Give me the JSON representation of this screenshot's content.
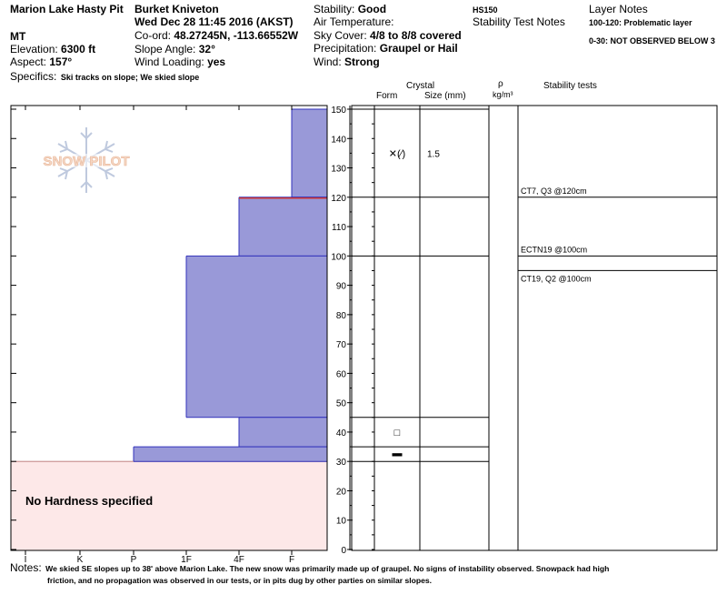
{
  "header": {
    "site": "Marion Lake Hasty Pit",
    "state": "MT",
    "elevation_label": "Elevation:",
    "elevation_value": "6300 ft",
    "aspect_label": "Aspect:",
    "aspect_value": "157°",
    "specifics_label": "Specifics:",
    "specifics_value": "Ski tracks on slope; We skied slope",
    "observer": "Burket Kniveton",
    "datetime": "Wed Dec 28 11:45 2016 (AKST)",
    "coord_label": "Co-ord:",
    "coord_value": "48.27245N, -113.66552W",
    "slope_label": "Slope Angle:",
    "slope_value": "32°",
    "wind_loading_label": "Wind Loading:",
    "wind_loading_value": "yes",
    "stability_label": "Stability:",
    "stability_value": "Good",
    "air_temp_label": "Air Temperature:",
    "sky_label": "Sky Cover:",
    "sky_value": "4/8 to 8/8 covered",
    "precip_label": "Precipitation:",
    "precip_value": "Graupel or Hail",
    "wind_label": "Wind:",
    "wind_value": "Strong",
    "hs": "HS150",
    "stability_notes": "Stability Test Notes",
    "layer_notes": "Layer Notes",
    "layer_note_1": "100-120: Problematic layer",
    "layer_note_2": "0-30: NOT OBSERVED BELOW 3"
  },
  "columns": {
    "crystal": "Crystal",
    "form": "Form",
    "size": "Size (mm)",
    "rho": "ρ",
    "rho_unit": "kg/m³",
    "stability_tests": "Stability tests"
  },
  "logo_text": "SNOW PILOT",
  "no_hardness_label": "No Hardness specified",
  "notes_label": "Notes:",
  "notes_line1": "We skied SE slopes up to 38' above Marion Lake. The new snow was primarily made up of graupel. No signs of instability observed. Snowpack had high",
  "notes_line2": "friction, and no propagation was observed in our tests, or in pits dug by other parties on similar slopes.",
  "crystal_layers": [
    {
      "depth": 135,
      "form": "✕(⁄)",
      "size": "1.5"
    },
    {
      "depth": 40,
      "form": "□",
      "size": ""
    },
    {
      "depth": 33,
      "form": "▬",
      "size": ""
    }
  ],
  "stability_tests": [
    {
      "depth": 120,
      "label": "CT7, Q3 @120cm"
    },
    {
      "depth": 100,
      "label": "ECTN19 @100cm"
    },
    {
      "depth": 100,
      "label": "CT19, Q2 @100cm"
    }
  ],
  "colors": {
    "hardness_fill": "#9999d8",
    "hardness_edge": "#3333bb",
    "no_hardness_fill": "#fde8e8",
    "no_hardness_edge": "#c08080",
    "problem_line": "#cc3333"
  },
  "chart_data": {
    "type": "bar",
    "orientation": "horizontal",
    "hardness_ticks": [
      "I",
      "K",
      "P",
      "1F",
      "4F",
      "F"
    ],
    "depth_ticks": [
      0,
      10,
      20,
      30,
      40,
      50,
      60,
      70,
      80,
      90,
      100,
      110,
      120,
      130,
      140,
      150
    ],
    "ylim": [
      0,
      150
    ],
    "layers": [
      {
        "top": 150,
        "bottom": 120,
        "hardness": "F"
      },
      {
        "top": 120,
        "bottom": 100,
        "hardness": "4F"
      },
      {
        "top": 100,
        "bottom": 45,
        "hardness": "1F"
      },
      {
        "top": 45,
        "bottom": 35,
        "hardness": "4F"
      },
      {
        "top": 35,
        "bottom": 30,
        "hardness": "P"
      }
    ],
    "no_hardness_range": [
      0,
      30
    ],
    "layer_boundaries": [
      150,
      120,
      100,
      45,
      35,
      30
    ]
  }
}
